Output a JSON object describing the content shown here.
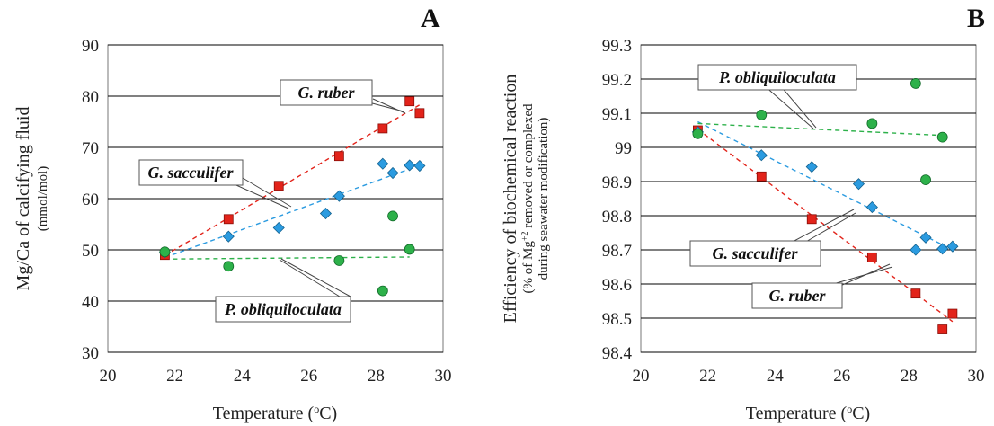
{
  "chart_data": [
    {
      "type": "scatter",
      "panel": "A",
      "xlabel": "Temperature (°C)",
      "ylabel": "Mg/Ca of calcifying fluid",
      "ylabel_sub": "(mmol/mol)",
      "xlim": [
        20,
        30
      ],
      "ylim": [
        30,
        90
      ],
      "xticks": [
        "20",
        "22",
        "24",
        "26",
        "28",
        "30"
      ],
      "yticks": [
        "30",
        "40",
        "50",
        "60",
        "70",
        "80",
        "90"
      ],
      "grid": true,
      "series": [
        {
          "name": "G. ruber",
          "color": "#e2231a",
          "marker": "square",
          "x": [
            21.7,
            23.6,
            25.1,
            26.9,
            28.2,
            29.0,
            29.3
          ],
          "y": [
            49.0,
            56.0,
            62.5,
            68.3,
            73.7,
            79.0,
            76.7
          ],
          "trend": [
            [
              21.7,
              48.9
            ],
            [
              29.3,
              78.3
            ]
          ]
        },
        {
          "name": "G. sacculifer",
          "color": "#2b9be0",
          "marker": "diamond",
          "x": [
            21.7,
            23.6,
            25.1,
            26.5,
            26.9,
            28.2,
            28.5,
            29.0,
            29.3
          ],
          "y": [
            49.5,
            52.6,
            54.3,
            57.1,
            60.5,
            66.8,
            65.0,
            66.5,
            66.4
          ],
          "trend": [
            [
              21.7,
              48.5
            ],
            [
              29.3,
              66.5
            ]
          ]
        },
        {
          "name": "P. obliquiloculata",
          "color": "#2db14a",
          "marker": "circle",
          "x": [
            21.7,
            23.6,
            26.9,
            28.2,
            28.5,
            29.0
          ],
          "y": [
            49.6,
            46.8,
            47.9,
            42.0,
            56.6,
            50.1
          ],
          "trend": [
            [
              21.7,
              48.2
            ],
            [
              29.0,
              48.6
            ]
          ]
        }
      ]
    },
    {
      "type": "scatter",
      "panel": "B",
      "xlabel": "Temperature (°C)",
      "ylabel": "Efficiency of biochemical reaction",
      "ylabel_sub1": "(% of Mg+2 removed or complexed",
      "ylabel_sub2": "during seawater modification)",
      "xlim": [
        20,
        30
      ],
      "ylim": [
        98.4,
        99.3
      ],
      "xticks": [
        "20",
        "22",
        "24",
        "26",
        "28",
        "30"
      ],
      "yticks": [
        "98.4",
        "98.5",
        "98.6",
        "98.7",
        "98.8",
        "98.9",
        "99",
        "99.1",
        "99.2",
        "99.3"
      ],
      "grid": true,
      "series": [
        {
          "name": "G. ruber",
          "color": "#e2231a",
          "marker": "square",
          "x": [
            21.7,
            23.6,
            25.1,
            26.9,
            28.2,
            29.0,
            29.3
          ],
          "y": [
            99.05,
            98.915,
            98.79,
            98.678,
            98.572,
            98.467,
            98.513
          ],
          "trend": [
            [
              21.7,
              99.053
            ],
            [
              29.3,
              98.49
            ]
          ]
        },
        {
          "name": "G. sacculifer",
          "color": "#2b9be0",
          "marker": "diamond",
          "x": [
            21.7,
            23.6,
            25.1,
            26.5,
            26.9,
            28.2,
            28.5,
            29.0,
            29.3
          ],
          "y": [
            99.045,
            98.977,
            98.943,
            98.893,
            98.825,
            98.7,
            98.736,
            98.703,
            98.71
          ],
          "trend": [
            [
              21.7,
              99.075
            ],
            [
              29.3,
              98.7
            ]
          ]
        },
        {
          "name": "P. obliquiloculata",
          "color": "#2db14a",
          "marker": "circle",
          "x": [
            21.7,
            23.6,
            26.9,
            28.2,
            28.5,
            29.0
          ],
          "y": [
            99.04,
            99.095,
            99.07,
            99.187,
            98.905,
            99.03
          ],
          "trend": [
            [
              21.7,
              99.07
            ],
            [
              29.0,
              99.035
            ]
          ]
        }
      ]
    }
  ]
}
